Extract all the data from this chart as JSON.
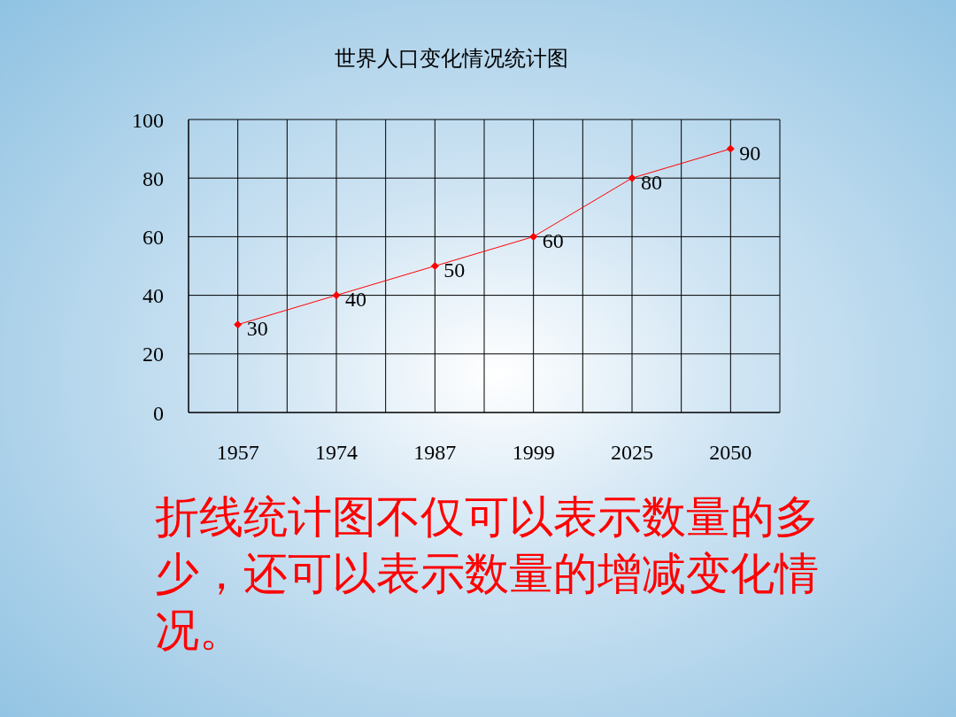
{
  "chart_data": {
    "type": "line",
    "title": "世界人口变化情况统计图",
    "categories": [
      "1957",
      "1974",
      "1987",
      "1999",
      "2025",
      "2050"
    ],
    "series": [
      {
        "color": "#ff0000",
        "values": [
          30,
          40,
          50,
          60,
          80,
          90
        ]
      }
    ],
    "ylim": [
      0,
      100
    ],
    "yticks": [
      0,
      20,
      40,
      60,
      80,
      100
    ],
    "grid": true,
    "marker": "diamond",
    "data_labels": true,
    "annotations": [
      "折线统计图不仅可以表示数量的多少，还可以表示数量的增减变化情况。"
    ]
  }
}
